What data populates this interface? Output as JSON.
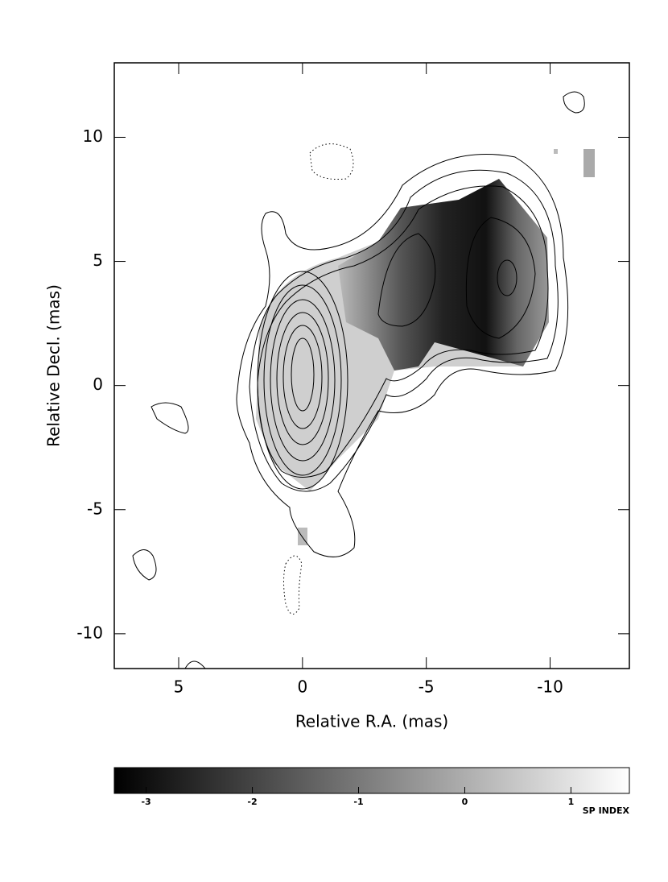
{
  "chart_data": {
    "type": "image",
    "xlabel": "Relative R.A. (mas)",
    "ylabel": "Relative Decl. (mas)",
    "xlim": [
      7.6,
      -13.2
    ],
    "ylim": [
      -11.4,
      13.0
    ],
    "xticks": [
      5,
      0,
      -5,
      -10
    ],
    "yticks": [
      10,
      5,
      0,
      -5,
      -10
    ],
    "colorbar": {
      "label": "SP INDEX",
      "lim": [
        -3.3,
        1.55
      ],
      "ticks": [
        -3,
        -2,
        -1,
        0,
        1
      ]
    }
  }
}
